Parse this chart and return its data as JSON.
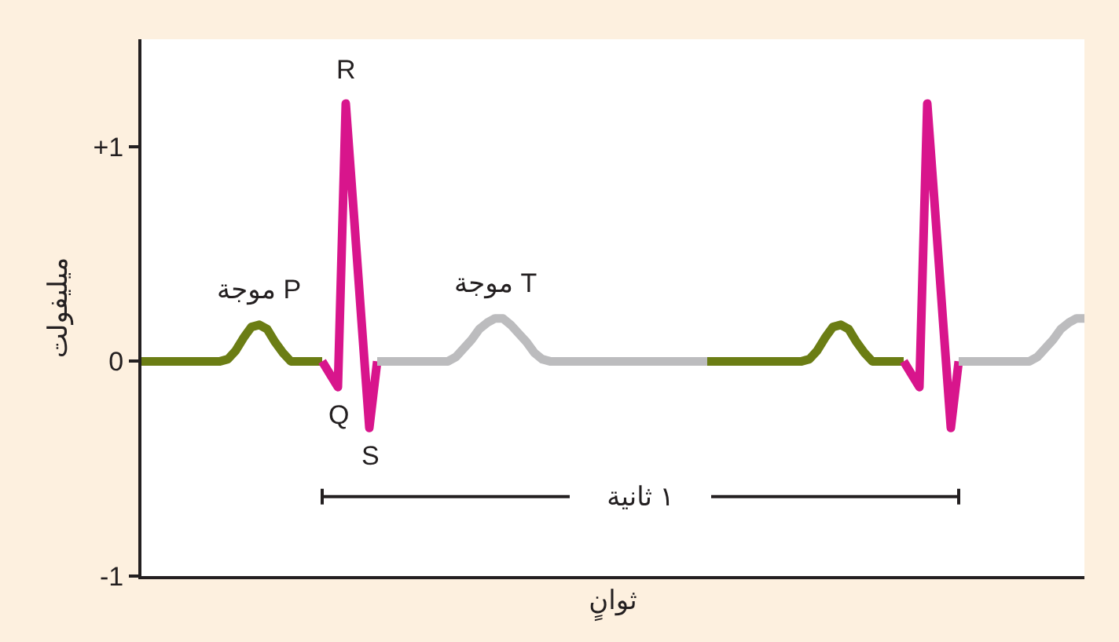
{
  "chart_data": {
    "type": "line",
    "xlabel": "ثوانٍ",
    "ylabel": "ميليفولت",
    "categories": [
      null,
      null,
      null,
      null,
      null,
      null,
      null,
      null,
      null,
      null,
      null,
      null,
      null,
      null,
      null,
      null,
      null,
      null,
      null,
      null,
      null,
      null,
      null,
      null,
      null,
      null,
      null,
      null,
      null,
      null,
      null,
      null,
      null,
      null,
      null,
      null,
      null,
      null,
      null,
      null,
      null,
      null,
      null,
      null,
      null,
      null,
      null,
      null,
      null,
      null,
      null,
      null,
      null,
      null,
      null,
      null,
      null,
      null,
      null,
      null,
      null,
      null,
      null,
      null,
      null,
      null,
      null,
      null,
      null,
      null,
      null,
      null,
      null,
      null,
      null,
      null,
      null,
      null,
      null,
      null,
      null,
      null,
      null,
      null,
      null,
      null,
      null,
      null,
      null,
      null,
      null,
      null,
      null,
      null,
      null,
      null,
      null,
      null,
      null,
      null,
      null,
      null,
      null,
      null,
      null,
      null,
      null,
      null,
      null,
      null,
      null,
      null,
      null,
      null,
      null,
      null,
      null,
      null,
      null,
      null,
      null
    ],
    "tick_labels": "y",
    "ylim": [
      -1,
      1.5
    ],
    "yticks": [
      -1,
      0,
      {
        "value": 1,
        "label": "+1"
      }
    ],
    "series": [
      {
        "color": "#6b7d14",
        "values": [
          0,
          0,
          0,
          0,
          0,
          0,
          0,
          0,
          0,
          0,
          0,
          0.01,
          0.05,
          0.11,
          0.16,
          0.17,
          0.15,
          0.09,
          0.04,
          0,
          0,
          0,
          0,
          0,
          null,
          null,
          null,
          null,
          null,
          null,
          null,
          null,
          null,
          null,
          null,
          null,
          null,
          null,
          null,
          null,
          null,
          null,
          null,
          null,
          null,
          null,
          null,
          null,
          null,
          null,
          null,
          null,
          null,
          null,
          null,
          null,
          null,
          null,
          null,
          null,
          null,
          null,
          null,
          null,
          null,
          null,
          null,
          null,
          null,
          null,
          null,
          null,
          0,
          0,
          0,
          0,
          0,
          0,
          0,
          0,
          0,
          0,
          0,
          0,
          0,
          0.01,
          0.05,
          0.11,
          0.16,
          0.17,
          0.15,
          0.09,
          0.04,
          0,
          0,
          0,
          0,
          0,
          null,
          null,
          null,
          null,
          null,
          null,
          null,
          null,
          null,
          null,
          null,
          null,
          null,
          null,
          null,
          null,
          null,
          null,
          null,
          null,
          null,
          null,
          null
        ]
      },
      {
        "color": "#d8158c",
        "values": [
          null,
          null,
          null,
          null,
          null,
          null,
          null,
          null,
          null,
          null,
          null,
          null,
          null,
          null,
          null,
          null,
          null,
          null,
          null,
          null,
          null,
          null,
          null,
          0,
          -0.06,
          -0.12,
          1.2,
          0.7,
          0.19,
          -0.31,
          0,
          null,
          null,
          null,
          null,
          null,
          null,
          null,
          null,
          null,
          null,
          null,
          null,
          null,
          null,
          null,
          null,
          null,
          null,
          null,
          null,
          null,
          null,
          null,
          null,
          null,
          null,
          null,
          null,
          null,
          null,
          null,
          null,
          null,
          null,
          null,
          null,
          null,
          null,
          null,
          null,
          null,
          null,
          null,
          null,
          null,
          null,
          null,
          null,
          null,
          null,
          null,
          null,
          null,
          null,
          null,
          null,
          null,
          null,
          null,
          null,
          null,
          null,
          null,
          null,
          null,
          null,
          0,
          -0.06,
          -0.12,
          1.2,
          0.7,
          0.19,
          -0.31,
          0,
          null,
          null,
          null,
          null,
          null,
          null,
          null,
          null,
          null,
          null,
          null,
          null,
          null,
          null,
          null,
          null
        ]
      },
      {
        "color": "#bcbcbe",
        "values": [
          null,
          null,
          null,
          null,
          null,
          null,
          null,
          null,
          null,
          null,
          null,
          null,
          null,
          null,
          null,
          null,
          null,
          null,
          null,
          null,
          null,
          null,
          null,
          null,
          null,
          null,
          null,
          null,
          null,
          null,
          0,
          0,
          0,
          0,
          0,
          0,
          0,
          0,
          0,
          0,
          0.02,
          0.06,
          0.1,
          0.15,
          0.18,
          0.2,
          0.2,
          0.17,
          0.13,
          0.09,
          0.04,
          0.01,
          0,
          0,
          0,
          0,
          0,
          0,
          0,
          0,
          0,
          0,
          0,
          0,
          0,
          0,
          0,
          0,
          0,
          0,
          0,
          0,
          0,
          null,
          null,
          null,
          null,
          null,
          null,
          null,
          null,
          null,
          null,
          null,
          null,
          null,
          null,
          null,
          null,
          null,
          null,
          null,
          null,
          null,
          null,
          null,
          null,
          null,
          null,
          null,
          null,
          null,
          null,
          null,
          0,
          0,
          0,
          0,
          0,
          0,
          0,
          0,
          0,
          0,
          0.02,
          0.06,
          0.1,
          0.15,
          0.18,
          0.2,
          0.2
        ]
      }
    ],
    "ref_lines": [
      {
        "axis": "y",
        "value": -0.63,
        "label": "١ ثانية"
      }
    ],
    "annotations": [
      {
        "text": "R",
        "y": 1.2
      },
      {
        "text": "Q",
        "y": -0.12
      },
      {
        "text": "S",
        "y": -0.31
      },
      {
        "text": "موجة P",
        "y": 0.17
      },
      {
        "text": "موجة T",
        "y": 0.2
      }
    ]
  }
}
